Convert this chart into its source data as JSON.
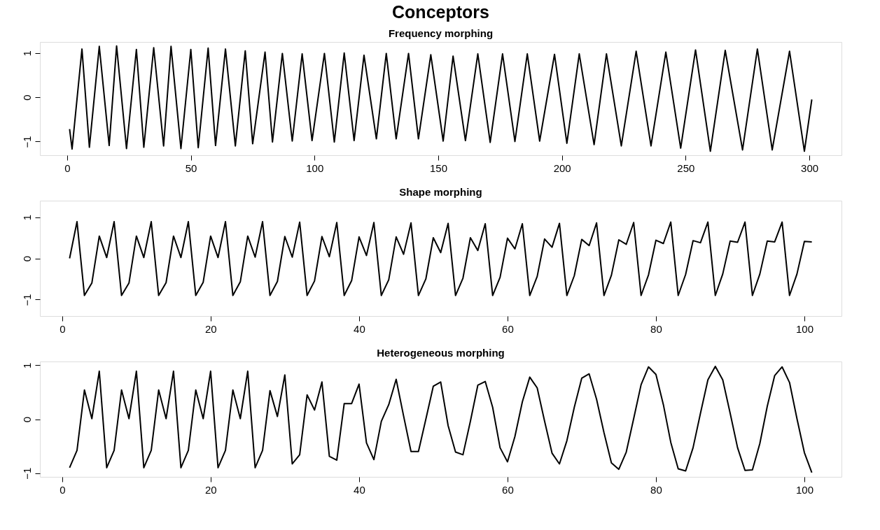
{
  "chart_data": [
    {
      "type": "line",
      "title": "Conceptors",
      "subtitle": "Frequency morphing",
      "color": "#000000",
      "x": [
        1,
        2,
        6,
        9,
        13,
        17,
        20,
        24,
        28,
        31,
        35,
        39,
        42,
        46,
        50,
        53,
        57,
        60,
        64,
        68,
        72,
        75,
        80,
        83,
        87,
        91,
        95,
        99,
        104,
        108,
        112,
        116,
        120,
        125,
        129,
        133,
        138,
        142,
        147,
        152,
        156,
        161,
        166,
        171,
        176,
        181,
        186,
        191,
        197,
        202,
        207,
        213,
        218,
        224,
        230,
        236,
        242,
        248,
        254,
        260,
        266,
        273,
        279,
        285,
        292,
        298,
        301
      ],
      "values": [
        -0.72,
        -1.17,
        1.09,
        -1.13,
        1.15,
        -1.09,
        1.16,
        -1.16,
        1.08,
        -1.13,
        1.12,
        -1.1,
        1.15,
        -1.16,
        1.08,
        -1.14,
        1.11,
        -1.09,
        1.09,
        -1.1,
        1.05,
        -1.05,
        1.02,
        -1.01,
        0.99,
        -0.99,
        0.98,
        -0.98,
        0.99,
        -1.01,
        1.0,
        -0.98,
        0.95,
        -0.94,
        0.99,
        -0.94,
        0.99,
        -0.94,
        0.96,
        -0.99,
        0.93,
        -0.98,
        0.98,
        -1.02,
        0.98,
        -1.0,
        0.98,
        -0.99,
        0.97,
        -1.04,
        0.98,
        -1.07,
        0.98,
        -1.1,
        1.04,
        -1.1,
        1.02,
        -1.15,
        1.07,
        -1.22,
        1.06,
        -1.19,
        1.09,
        -1.19,
        1.04,
        -1.22,
        -0.05
      ],
      "xlim": [
        -11,
        313
      ],
      "ylim": [
        -1.31,
        1.25
      ],
      "xticks": [
        0,
        50,
        100,
        150,
        200,
        250,
        300
      ],
      "yticks": [
        -1,
        0,
        1
      ]
    },
    {
      "type": "line",
      "title": "Shape morphing",
      "color": "#000000",
      "x": [
        1,
        2,
        3,
        4,
        5,
        6,
        7,
        8,
        9,
        10,
        11,
        12,
        13,
        14,
        15,
        16,
        17,
        18,
        19,
        20,
        21,
        22,
        23,
        24,
        25,
        26,
        27,
        28,
        29,
        30,
        31,
        32,
        33,
        34,
        35,
        36,
        37,
        38,
        39,
        40,
        41,
        42,
        43,
        44,
        45,
        46,
        47,
        48,
        49,
        50,
        51,
        52,
        53,
        54,
        55,
        56,
        57,
        58,
        59,
        60,
        61,
        62,
        63,
        64,
        65,
        66,
        67,
        68,
        69,
        70,
        71,
        72,
        73,
        74,
        75,
        76,
        77,
        78,
        79,
        80,
        81,
        82,
        83,
        84,
        85,
        86,
        87,
        88,
        89,
        90,
        91,
        92,
        93,
        94,
        95,
        96,
        97,
        98,
        99,
        100,
        101
      ],
      "values": [
        0,
        0.89,
        -0.9,
        -0.6,
        0.54,
        0.02,
        0.89,
        -0.9,
        -0.6,
        0.54,
        0.02,
        0.89,
        -0.9,
        -0.59,
        0.54,
        0.02,
        0.89,
        -0.9,
        -0.58,
        0.54,
        0.02,
        0.89,
        -0.9,
        -0.57,
        0.54,
        0.03,
        0.89,
        -0.9,
        -0.56,
        0.53,
        0.03,
        0.88,
        -0.9,
        -0.55,
        0.53,
        0.04,
        0.87,
        -0.9,
        -0.54,
        0.52,
        0.07,
        0.87,
        -0.9,
        -0.52,
        0.52,
        0.1,
        0.86,
        -0.9,
        -0.5,
        0.5,
        0.14,
        0.85,
        -0.9,
        -0.48,
        0.5,
        0.19,
        0.84,
        -0.9,
        -0.46,
        0.49,
        0.23,
        0.84,
        -0.9,
        -0.44,
        0.47,
        0.27,
        0.85,
        -0.9,
        -0.42,
        0.46,
        0.31,
        0.86,
        -0.9,
        -0.41,
        0.45,
        0.34,
        0.87,
        -0.9,
        -0.4,
        0.44,
        0.36,
        0.88,
        -0.9,
        -0.39,
        0.43,
        0.38,
        0.88,
        -0.9,
        -0.38,
        0.42,
        0.39,
        0.88,
        -0.9,
        -0.38,
        0.42,
        0.4,
        0.88,
        -0.9,
        -0.38,
        0.41,
        0.4
      ],
      "xlim": [
        -3,
        105
      ],
      "ylim": [
        -1.4,
        1.4
      ],
      "xticks": [
        0,
        20,
        40,
        60,
        80,
        100
      ],
      "yticks": [
        -1,
        0,
        1
      ]
    },
    {
      "type": "line",
      "title": "Heterogeneous morphing",
      "color": "#000000",
      "x": [
        1,
        2,
        3,
        4,
        5,
        6,
        7,
        8,
        9,
        10,
        11,
        12,
        13,
        14,
        15,
        16,
        17,
        18,
        19,
        20,
        21,
        22,
        23,
        24,
        25,
        26,
        27,
        28,
        29,
        30,
        31,
        32,
        33,
        34,
        35,
        36,
        37,
        38,
        39,
        40,
        41,
        42,
        43,
        44,
        45,
        46,
        47,
        48,
        49,
        50,
        51,
        52,
        53,
        54,
        55,
        56,
        57,
        58,
        59,
        60,
        61,
        62,
        63,
        64,
        65,
        66,
        67,
        68,
        69,
        70,
        71,
        72,
        73,
        74,
        75,
        76,
        77,
        78,
        79,
        80,
        81,
        82,
        83,
        84,
        85,
        86,
        87,
        88,
        89,
        90,
        91,
        92,
        93,
        94,
        95,
        96,
        97,
        98,
        99,
        100,
        101
      ],
      "values": [
        -0.9,
        -0.58,
        0.54,
        0.01,
        0.89,
        -0.9,
        -0.58,
        0.54,
        0.01,
        0.89,
        -0.9,
        -0.58,
        0.54,
        0.01,
        0.89,
        -0.9,
        -0.58,
        0.54,
        0.01,
        0.89,
        -0.9,
        -0.58,
        0.54,
        0.01,
        0.89,
        -0.9,
        -0.58,
        0.53,
        0.05,
        0.82,
        -0.83,
        -0.66,
        0.45,
        0.17,
        0.69,
        -0.69,
        -0.76,
        0.29,
        0.29,
        0.65,
        -0.44,
        -0.75,
        -0.04,
        0.27,
        0.74,
        0.06,
        -0.6,
        -0.6,
        0.0,
        0.61,
        0.69,
        -0.12,
        -0.61,
        -0.66,
        -0.04,
        0.63,
        0.7,
        0.22,
        -0.53,
        -0.79,
        -0.32,
        0.32,
        0.78,
        0.58,
        -0.04,
        -0.63,
        -0.83,
        -0.4,
        0.22,
        0.76,
        0.84,
        0.37,
        -0.25,
        -0.81,
        -0.93,
        -0.61,
        0.01,
        0.64,
        0.97,
        0.83,
        0.27,
        -0.43,
        -0.92,
        -0.96,
        -0.53,
        0.11,
        0.73,
        0.98,
        0.73,
        0.11,
        -0.53,
        -0.95,
        -0.94,
        -0.45,
        0.24,
        0.81,
        0.97,
        0.68,
        0.01,
        -0.62,
        -0.99
      ],
      "xlim": [
        -3,
        105
      ],
      "ylim": [
        -1.07,
        1.07
      ],
      "xticks": [
        0,
        20,
        40,
        60,
        80,
        100
      ],
      "yticks": [
        -1,
        0,
        1
      ]
    }
  ]
}
